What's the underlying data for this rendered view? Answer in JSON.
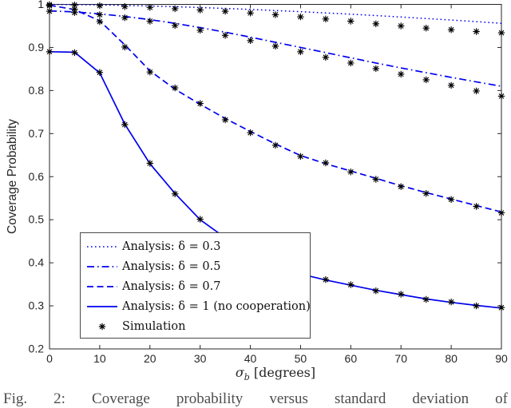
{
  "figure": {
    "ylabel": "Coverage Probability",
    "xlabel": {
      "symbol": "σ",
      "subscript": "b",
      "unit": " [degrees]"
    },
    "caption": "Fig. 2:  Coverage probability versus standard deviation of"
  },
  "legend": {
    "items": [
      {
        "label": "Analysis: δ = 0.3"
      },
      {
        "label": "Analysis: δ = 0.5"
      },
      {
        "label": "Analysis: δ = 0.7"
      },
      {
        "label": "Analysis: δ = 1 (no cooperation)"
      },
      {
        "label": "Simulation"
      }
    ]
  },
  "chart_data": {
    "type": "line",
    "title": "",
    "xlabel": "σ_b [degrees]",
    "ylabel": "Coverage Probability",
    "xlim": [
      0,
      90
    ],
    "ylim": [
      0.2,
      1
    ],
    "grid": false,
    "legend_position": "lower-left",
    "axis_color": "#262626",
    "line_color": "#0000EE",
    "marker_color": "#000000",
    "x_ticks": [
      0,
      10,
      20,
      30,
      40,
      50,
      60,
      70,
      80,
      90
    ],
    "x_tick_labels": [
      "0",
      "10",
      "20",
      "30",
      "40",
      "50",
      "60",
      "70",
      "80",
      "90"
    ],
    "y_ticks": [
      0.2,
      0.3,
      0.4,
      0.5,
      0.6,
      0.7,
      0.8,
      0.9,
      1
    ],
    "y_tick_labels": [
      "0.2",
      "0.3",
      "0.4",
      "0.5",
      "0.6",
      "0.7",
      "0.8",
      "0.9",
      "1"
    ],
    "x": [
      0,
      5,
      10,
      15,
      20,
      25,
      30,
      35,
      40,
      45,
      50,
      55,
      60,
      65,
      70,
      75,
      80,
      85,
      90
    ],
    "series": [
      {
        "name": "Analysis: δ = 0.3",
        "style": "dotted",
        "values": [
          1.0,
          0.9995,
          0.9987,
          0.9976,
          0.9962,
          0.9946,
          0.9927,
          0.9906,
          0.9883,
          0.9858,
          0.9831,
          0.9802,
          0.9772,
          0.974,
          0.9707,
          0.9672,
          0.9636,
          0.9599,
          0.956
        ]
      },
      {
        "name": "Analysis: δ = 0.5",
        "style": "dashdot",
        "values": [
          0.985,
          0.9825,
          0.978,
          0.972,
          0.9645,
          0.956,
          0.946,
          0.9355,
          0.924,
          0.912,
          0.9,
          0.888,
          0.876,
          0.864,
          0.8525,
          0.8415,
          0.8305,
          0.82,
          0.81
        ]
      },
      {
        "name": "Analysis: δ = 0.7",
        "style": "dashed",
        "values": [
          0.998,
          0.988,
          0.962,
          0.906,
          0.846,
          0.803,
          0.768,
          0.735,
          0.705,
          0.676,
          0.649,
          0.63,
          0.613,
          0.596,
          0.579,
          0.563,
          0.548,
          0.533,
          0.518
        ]
      },
      {
        "name": "Analysis: δ = 1 (no cooperation)",
        "style": "solid",
        "values": [
          0.89,
          0.889,
          0.841,
          0.722,
          0.63,
          0.561,
          0.5,
          0.458,
          0.424,
          0.396,
          0.374,
          0.36,
          0.348,
          0.336,
          0.326,
          0.316,
          0.308,
          0.301,
          0.295
        ]
      }
    ],
    "simulation": [
      {
        "follows": "Analysis: δ = 0.3",
        "values": [
          0.9995,
          0.9985,
          0.997,
          0.995,
          0.993,
          0.99,
          0.987,
          0.984,
          0.98,
          0.976,
          0.971,
          0.966,
          0.961,
          0.955,
          0.95,
          0.945,
          0.941,
          0.937,
          0.934
        ]
      },
      {
        "follows": "Analysis: δ = 0.5",
        "values": [
          0.984,
          0.981,
          0.976,
          0.969,
          0.961,
          0.951,
          0.94,
          0.928,
          0.916,
          0.903,
          0.89,
          0.877,
          0.864,
          0.851,
          0.838,
          0.825,
          0.812,
          0.799,
          0.787
        ]
      },
      {
        "follows": "Analysis: δ = 0.7",
        "values": [
          0.997,
          0.989,
          0.96,
          0.901,
          0.843,
          0.806,
          0.77,
          0.732,
          0.702,
          0.673,
          0.647,
          0.632,
          0.611,
          0.594,
          0.577,
          0.561,
          0.547,
          0.531,
          0.516
        ]
      },
      {
        "follows": "Analysis: δ = 1 (no cooperation)",
        "values": [
          0.89,
          0.888,
          0.842,
          0.721,
          0.631,
          0.56,
          0.501,
          0.457,
          0.423,
          0.395,
          0.373,
          0.361,
          0.349,
          0.335,
          0.327,
          0.315,
          0.309,
          0.3,
          0.296
        ]
      }
    ]
  }
}
